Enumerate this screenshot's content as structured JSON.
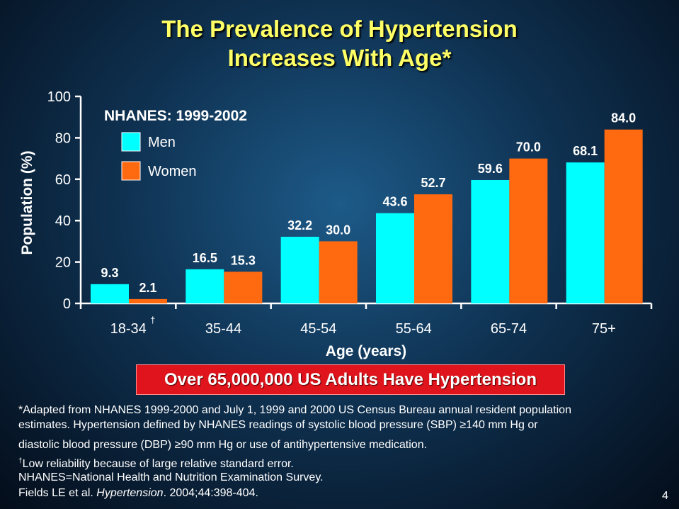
{
  "title_line1": "The Prevalence of Hypertension",
  "title_line2": "Increases With Age*",
  "banner": "Over 65,000,000 US Adults Have Hypertension",
  "footnotes": {
    "line1": "*Adapted from NHANES 1999-2000 and July 1, 1999 and 2000 US Census Bureau annual resident population",
    "line2": "estimates. Hypertension defined by NHANES readings of systolic blood pressure (SBP) ≥140 mm Hg or",
    "line3": "diastolic blood pressure (DBP) ≥90 mm Hg or use of antihypertensive medication.",
    "dagger": "†",
    "line4": "Low reliability because of large relative standard error.",
    "line5": "NHANES=National Health and Nutrition Examination Survey.",
    "line6_prefix": "Fields LE et al. ",
    "line6_journal": "Hypertension",
    "line6_suffix": ". 2004;44:398-404."
  },
  "page_number": "4",
  "chart_data": {
    "type": "bar",
    "title": "NHANES: 1999-2002",
    "xlabel": "Age (years)",
    "ylabel": "Population (%)",
    "ylim": [
      0,
      100
    ],
    "yticks": [
      0,
      20,
      40,
      60,
      80,
      100
    ],
    "categories": [
      "18-34",
      "35-44",
      "45-54",
      "55-64",
      "65-74",
      "75+"
    ],
    "category_marks": [
      "†",
      "",
      "",
      "",
      "",
      ""
    ],
    "series": [
      {
        "name": "Men",
        "color": "#00ffff",
        "values": [
          9.3,
          16.5,
          32.2,
          43.6,
          59.6,
          68.1
        ],
        "labels": [
          "9.3",
          "16.5",
          "32.2",
          "43.6",
          "59.6",
          "68.1"
        ]
      },
      {
        "name": "Women",
        "color": "#ff6a10",
        "values": [
          2.1,
          15.3,
          30.0,
          52.7,
          70.0,
          84.0
        ],
        "labels": [
          "2.1",
          "15.3",
          "30.0",
          "52.7",
          "70.0",
          "84.0"
        ]
      }
    ],
    "legend_position": "top-left",
    "grid": false
  }
}
